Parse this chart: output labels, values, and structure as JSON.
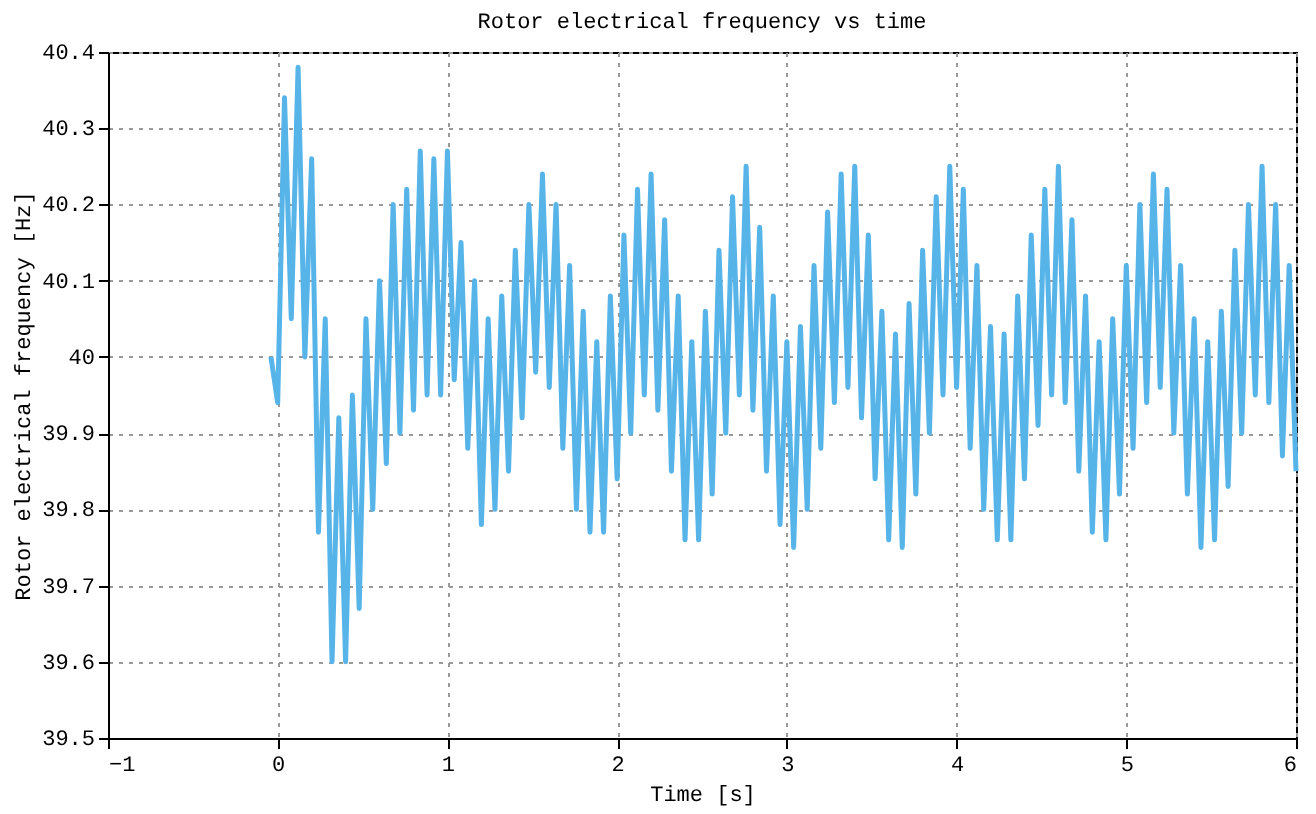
{
  "chart_data": {
    "type": "line",
    "title": "Rotor electrical frequency vs time",
    "xlabel": "Time [s]",
    "ylabel": "Rotor electrical frequency [Hz]",
    "xlim": [
      -1,
      6
    ],
    "xticks": [
      -1,
      0,
      1,
      2,
      3,
      4,
      5,
      6
    ],
    "ylim": [
      39.5,
      40.4
    ],
    "yticks": [
      39.5,
      39.6,
      39.7,
      39.8,
      39.9,
      40,
      40.1,
      40.2,
      40.3,
      40.4
    ],
    "grid": true,
    "marker": "none",
    "line_style": "solid",
    "x": [
      -0.04,
      0.0,
      0.04,
      0.08,
      0.12,
      0.16,
      0.2,
      0.24,
      0.28,
      0.32,
      0.36,
      0.4,
      0.44,
      0.48,
      0.52,
      0.56,
      0.6,
      0.64,
      0.68,
      0.72,
      0.76,
      0.8,
      0.84,
      0.88,
      0.92,
      0.96,
      1.0,
      1.04,
      1.08,
      1.12,
      1.16,
      1.2,
      1.24,
      1.28,
      1.32,
      1.36,
      1.4,
      1.44,
      1.48,
      1.52,
      1.56,
      1.6,
      1.64,
      1.68,
      1.72,
      1.76,
      1.8,
      1.84,
      1.88,
      1.92,
      1.96,
      2.0,
      2.04,
      2.08,
      2.12,
      2.16,
      2.2,
      2.24,
      2.28,
      2.32,
      2.36,
      2.4,
      2.44,
      2.48,
      2.52,
      2.56,
      2.6,
      2.64,
      2.68,
      2.72,
      2.76,
      2.8,
      2.84,
      2.88,
      2.92,
      2.96,
      3.0,
      3.04,
      3.08,
      3.12,
      3.16,
      3.2,
      3.24,
      3.28,
      3.32,
      3.36,
      3.4,
      3.44,
      3.48,
      3.52,
      3.56,
      3.6,
      3.64,
      3.68,
      3.72,
      3.76,
      3.8,
      3.84,
      3.88,
      3.92,
      3.96,
      4.0,
      4.04,
      4.08,
      4.12,
      4.16,
      4.2,
      4.24,
      4.28,
      4.32,
      4.36,
      4.4,
      4.44,
      4.48,
      4.52,
      4.56,
      4.6,
      4.64,
      4.68,
      4.72,
      4.76,
      4.8,
      4.84,
      4.88,
      4.92,
      4.96,
      5.0,
      5.04,
      5.08,
      5.12,
      5.16,
      5.2,
      5.24,
      5.28,
      5.32,
      5.36,
      5.4,
      5.44,
      5.48,
      5.52,
      5.56,
      5.6,
      5.64,
      5.68,
      5.72,
      5.76,
      5.8,
      5.84,
      5.88,
      5.92,
      5.96,
      6.0
    ],
    "series": [
      {
        "color": "#56b4e9",
        "values": [
          40.0,
          39.94,
          40.34,
          40.05,
          40.38,
          40.0,
          40.26,
          39.77,
          40.05,
          39.6,
          39.92,
          39.6,
          39.95,
          39.67,
          40.05,
          39.8,
          40.1,
          39.86,
          40.2,
          39.9,
          40.22,
          39.93,
          40.27,
          39.95,
          40.26,
          39.95,
          40.27,
          39.97,
          40.15,
          39.88,
          40.1,
          39.78,
          40.05,
          39.8,
          40.08,
          39.85,
          40.14,
          39.92,
          40.2,
          39.98,
          40.24,
          39.96,
          40.2,
          39.88,
          40.12,
          39.8,
          40.06,
          39.77,
          40.02,
          39.77,
          40.08,
          39.84,
          40.16,
          39.9,
          40.22,
          39.95,
          40.24,
          39.93,
          40.18,
          39.85,
          40.08,
          39.76,
          40.02,
          39.76,
          40.06,
          39.82,
          40.14,
          39.9,
          40.21,
          39.95,
          40.25,
          39.93,
          40.17,
          39.85,
          40.08,
          39.78,
          40.02,
          39.75,
          40.04,
          39.8,
          40.12,
          39.88,
          40.19,
          39.94,
          40.24,
          39.96,
          40.25,
          39.92,
          40.16,
          39.84,
          40.06,
          39.76,
          40.03,
          39.75,
          40.07,
          39.82,
          40.14,
          39.9,
          40.21,
          39.95,
          40.25,
          39.96,
          40.22,
          39.88,
          40.12,
          39.8,
          40.04,
          39.76,
          40.03,
          39.76,
          40.08,
          39.84,
          40.16,
          39.91,
          40.22,
          39.95,
          40.25,
          39.94,
          40.18,
          39.85,
          40.08,
          39.77,
          40.02,
          39.76,
          40.05,
          39.82,
          40.12,
          39.88,
          40.2,
          39.94,
          40.24,
          39.96,
          40.22,
          39.9,
          40.12,
          39.82,
          40.05,
          39.75,
          40.02,
          39.76,
          40.06,
          39.83,
          40.14,
          39.9,
          40.2,
          39.95,
          40.25,
          39.94,
          40.2,
          39.87,
          40.12,
          39.85
        ]
      }
    ]
  }
}
